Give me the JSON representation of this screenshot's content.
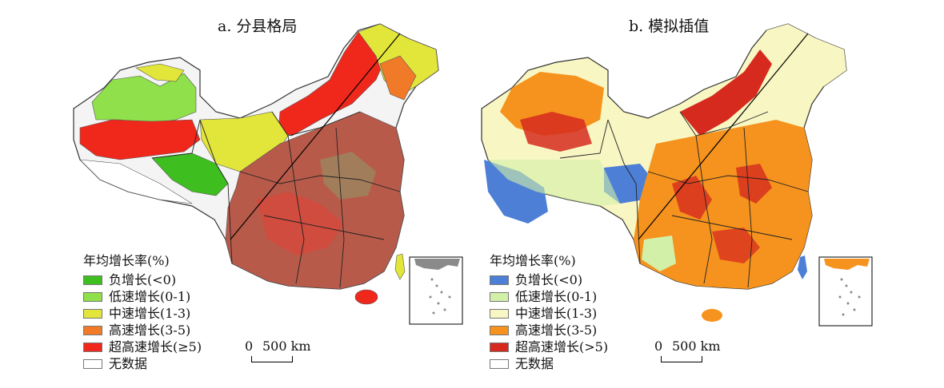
{
  "panels": [
    {
      "title": "a. 分县格局",
      "legend_title": "年均增长率(%)",
      "legend": [
        {
          "label": "负增长(<0)",
          "color": "#3fbf1f"
        },
        {
          "label": "低速增长(0-1)",
          "color": "#8fe04a"
        },
        {
          "label": "中速增长(1-3)",
          "color": "#e2e63a"
        },
        {
          "label": "高速增长(3-5)",
          "color": "#f07a28"
        },
        {
          "label": "超高速增长(≥5)",
          "color": "#f0281c"
        },
        {
          "label": "无数据",
          "color": "#ffffff"
        }
      ],
      "scale": {
        "zero": "0",
        "label": "500 km"
      }
    },
    {
      "title": "b. 模拟插值",
      "legend_title": "年均增长率(%)",
      "legend": [
        {
          "label": "负增长(<0)",
          "color": "#4d7fd6"
        },
        {
          "label": "低速增长(0-1)",
          "color": "#d3f0a8"
        },
        {
          "label": "中速增长(1-3)",
          "color": "#f8f6c2"
        },
        {
          "label": "高速增长(3-5)",
          "color": "#f5931e"
        },
        {
          "label": "超高速增长(>5)",
          "color": "#d62a1e"
        },
        {
          "label": "无数据",
          "color": "#ffffff"
        }
      ],
      "scale": {
        "zero": "0",
        "label": "500 km"
      }
    }
  ]
}
